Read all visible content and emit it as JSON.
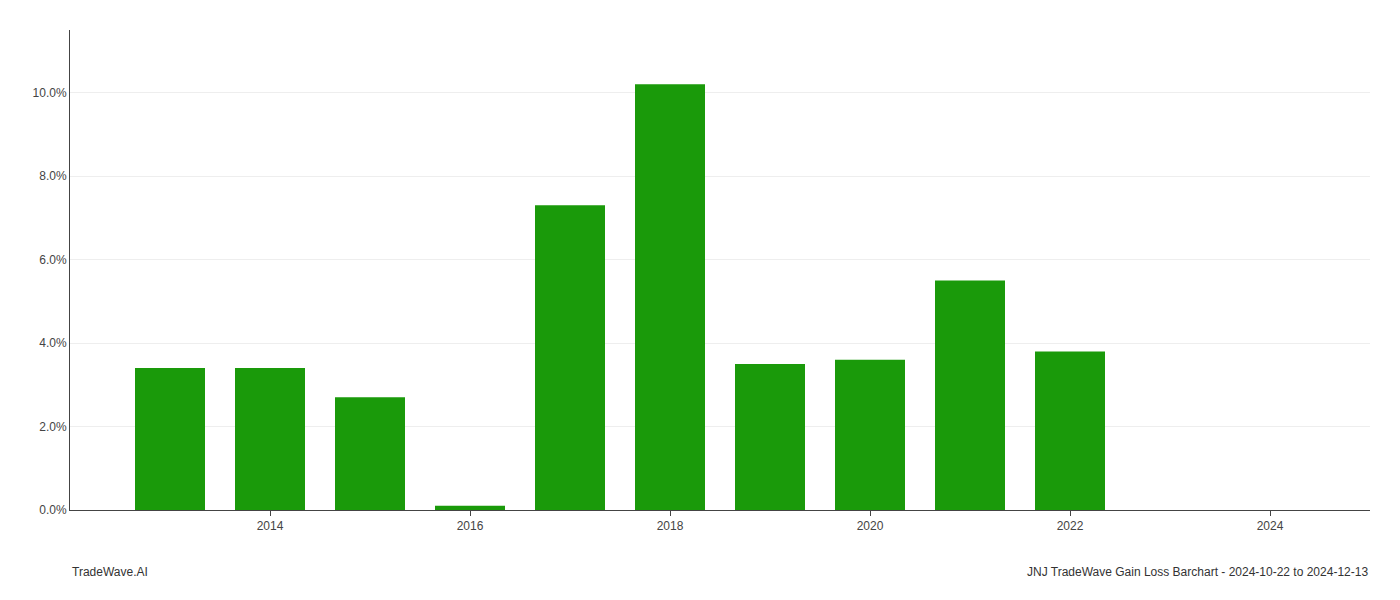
{
  "chart_data": {
    "type": "bar",
    "x": [
      2013,
      2014,
      2015,
      2016,
      2017,
      2018,
      2019,
      2020,
      2021,
      2022,
      2023
    ],
    "values": [
      0.034,
      0.034,
      0.027,
      0.001,
      0.073,
      0.102,
      0.035,
      0.036,
      0.055,
      0.038,
      0.0
    ],
    "color": "#1a9a0a",
    "xlim": [
      2012.0,
      2025.0
    ],
    "xticks": [
      2014,
      2016,
      2018,
      2020,
      2022,
      2024
    ],
    "ylim": [
      0,
      0.115
    ],
    "yticks": [
      {
        "value": 0.0,
        "label": "0.0%"
      },
      {
        "value": 0.02,
        "label": "2.0%"
      },
      {
        "value": 0.04,
        "label": "4.0%"
      },
      {
        "value": 0.06,
        "label": "6.0%"
      },
      {
        "value": 0.08,
        "label": "8.0%"
      },
      {
        "value": 0.1,
        "label": "10.0%"
      }
    ],
    "grid": "y",
    "annotations": [
      "TradeWave.AI",
      "JNJ TradeWave Gain Loss Barchart - 2024-10-22 to 2024-12-13"
    ]
  }
}
